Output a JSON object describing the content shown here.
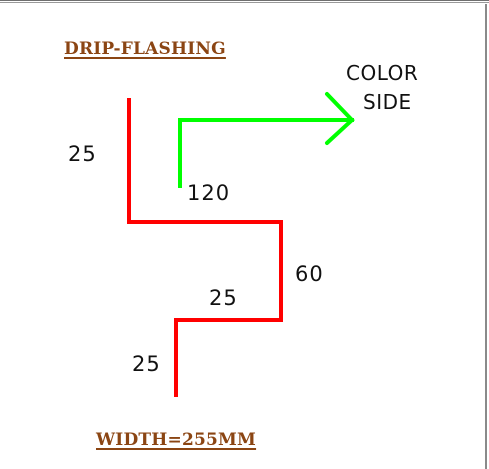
{
  "title_top": "DRIP-FLASHING",
  "title_bottom": "WIDTH=255MM",
  "note_line1": "COLOR",
  "note_line2": "SIDE",
  "dimensions": {
    "top_segment": "25",
    "hem_segment": "120",
    "middle_segment": "60",
    "step_segment": "25",
    "bottom_segment": "25"
  },
  "colors": {
    "profile": "#ff0000",
    "arrow": "#00ff00",
    "title": "#8b4513"
  }
}
